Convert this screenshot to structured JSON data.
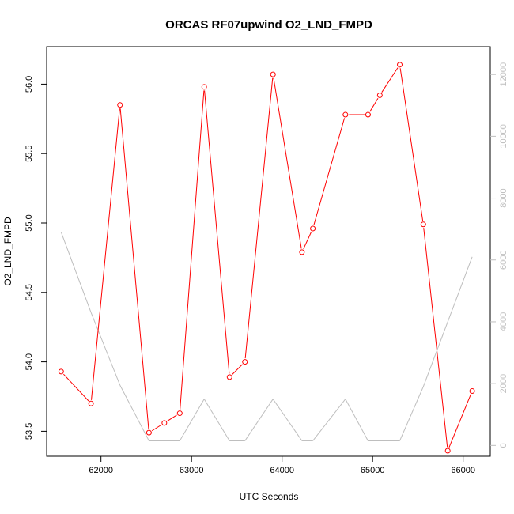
{
  "chart_data": {
    "type": "line",
    "title": "ORCAS RF07upwind O2_LND_FMPD",
    "xlabel": "UTC Seconds",
    "ylabel": "O2_LND_FMPD",
    "xlim": [
      61400,
      66300
    ],
    "ylim": [
      53.32,
      56.27
    ],
    "y2lim": [
      -350,
      12900
    ],
    "x_ticks": [
      62000,
      63000,
      64000,
      65000,
      66000
    ],
    "x_tick_labels": [
      "62000",
      "63000",
      "64000",
      "65000",
      "66000"
    ],
    "y_ticks": [
      53.5,
      54.0,
      54.5,
      55.0,
      55.5,
      56.0
    ],
    "y_tick_labels": [
      "53.5",
      "54.0",
      "54.5",
      "55.0",
      "55.5",
      "56.0"
    ],
    "y2_ticks": [
      0,
      2000,
      4000,
      6000,
      8000,
      10000,
      12000
    ],
    "y2_tick_labels": [
      "0",
      "2000",
      "4000",
      "6000",
      "8000",
      "10000",
      "12000"
    ],
    "series": [
      {
        "color": "#ff0000",
        "marker": "open-circle",
        "axis": "left",
        "x": [
          61560,
          61890,
          62210,
          62530,
          62700,
          62870,
          63140,
          63420,
          63590,
          63900,
          64220,
          64340,
          64700,
          64950,
          65080,
          65300,
          65560,
          65830,
          66100
        ],
        "y": [
          53.93,
          53.7,
          55.85,
          53.49,
          53.56,
          53.63,
          55.98,
          53.89,
          54.0,
          56.07,
          54.79,
          54.96,
          55.78,
          55.78,
          55.92,
          56.14,
          54.99,
          53.36,
          53.79
        ]
      },
      {
        "color": "#bebebe",
        "marker": "none",
        "axis": "right",
        "x": [
          61560,
          61890,
          62210,
          62530,
          62870,
          63140,
          63420,
          63590,
          63900,
          64220,
          64340,
          64700,
          64950,
          65300,
          65560,
          66100
        ],
        "y": [
          6900,
          4300,
          1950,
          150,
          150,
          1500,
          150,
          150,
          1500,
          150,
          150,
          1500,
          150,
          150,
          1900,
          6100
        ]
      }
    ]
  }
}
